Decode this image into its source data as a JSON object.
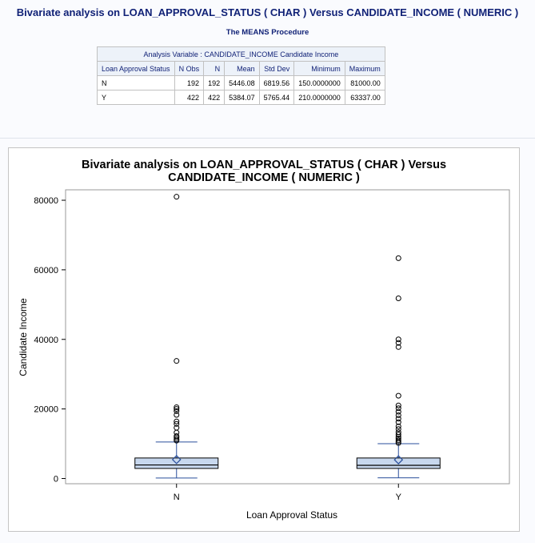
{
  "page_title": "Bivariate analysis on LOAN_APPROVAL_STATUS ( CHAR ) Versus CANDIDATE_INCOME ( NUMERIC )",
  "procedure_title": "The MEANS Procedure",
  "means_table": {
    "caption": "Analysis Variable : CANDIDATE_INCOME Candidate Income",
    "headers": [
      "Loan Approval Status",
      "N Obs",
      "N",
      "Mean",
      "Std Dev",
      "Minimum",
      "Maximum"
    ],
    "rows": [
      [
        "N",
        "192",
        "192",
        "5446.08",
        "6819.56",
        "150.0000000",
        "81000.00"
      ],
      [
        "Y",
        "422",
        "422",
        "5384.07",
        "5765.44",
        "210.0000000",
        "63337.00"
      ]
    ]
  },
  "chart_data": {
    "type": "box",
    "title_line1": "Bivariate analysis on LOAN_APPROVAL_STATUS  ( CHAR ) Versus",
    "title_line2": "CANDIDATE_INCOME ( NUMERIC )",
    "xlabel": "Loan Approval Status",
    "ylabel": "Candidate Income",
    "ylim": [
      -1500,
      83000
    ],
    "yticks": [
      0,
      20000,
      40000,
      60000,
      80000
    ],
    "categories": [
      "N",
      "Y"
    ],
    "boxes": [
      {
        "category": "N",
        "whisker_low": 150,
        "q1": 2900,
        "median": 3900,
        "q3": 5900,
        "whisker_high": 10500,
        "mean": 5446.08,
        "outliers": [
          10900,
          11300,
          11800,
          12200,
          13200,
          14600,
          15700,
          16400,
          18300,
          19400,
          20000,
          20500,
          33800,
          81000
        ]
      },
      {
        "category": "Y",
        "whisker_low": 210,
        "q1": 2900,
        "median": 3800,
        "q3": 5900,
        "whisker_high": 10000,
        "mean": 5384.07,
        "outliers": [
          10200,
          10600,
          11000,
          11500,
          12000,
          12600,
          13300,
          14200,
          15000,
          16200,
          17200,
          18200,
          19200,
          20200,
          21000,
          23800,
          37800,
          39000,
          40000,
          51800,
          63337
        ]
      }
    ],
    "box_fill": "#c8d8ee",
    "stroke_color": "#000000",
    "whisker_color": "#2a4f9c",
    "mean_marker_color": "#2a4f9c"
  }
}
